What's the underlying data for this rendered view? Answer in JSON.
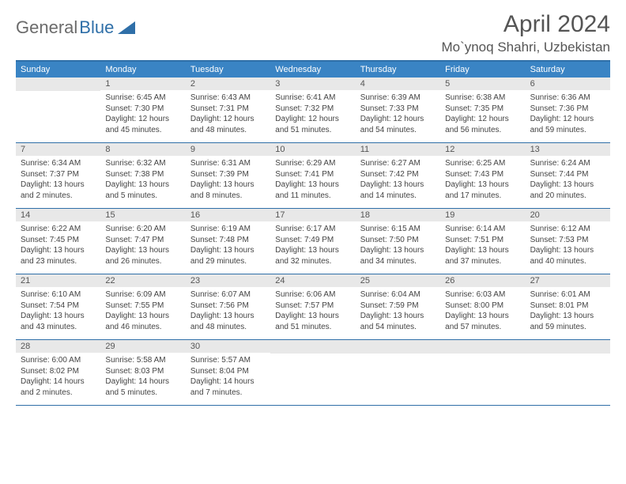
{
  "logo": {
    "gray": "General",
    "blue": "Blue"
  },
  "title": "April 2024",
  "location": "Mo`ynoq Shahri, Uzbekistan",
  "weekdays": [
    "Sunday",
    "Monday",
    "Tuesday",
    "Wednesday",
    "Thursday",
    "Friday",
    "Saturday"
  ],
  "colors": {
    "header_bar": "#3a84c4",
    "accent_line": "#2f6fa8",
    "daynum_bg": "#e8e8e8",
    "logo_gray": "#6b6b6b",
    "logo_blue": "#2f6fa8",
    "text": "#444444"
  },
  "weeks": [
    [
      {
        "n": "",
        "sr": "",
        "ss": "",
        "d1": "",
        "d2": ""
      },
      {
        "n": "1",
        "sr": "Sunrise: 6:45 AM",
        "ss": "Sunset: 7:30 PM",
        "d1": "Daylight: 12 hours",
        "d2": "and 45 minutes."
      },
      {
        "n": "2",
        "sr": "Sunrise: 6:43 AM",
        "ss": "Sunset: 7:31 PM",
        "d1": "Daylight: 12 hours",
        "d2": "and 48 minutes."
      },
      {
        "n": "3",
        "sr": "Sunrise: 6:41 AM",
        "ss": "Sunset: 7:32 PM",
        "d1": "Daylight: 12 hours",
        "d2": "and 51 minutes."
      },
      {
        "n": "4",
        "sr": "Sunrise: 6:39 AM",
        "ss": "Sunset: 7:33 PM",
        "d1": "Daylight: 12 hours",
        "d2": "and 54 minutes."
      },
      {
        "n": "5",
        "sr": "Sunrise: 6:38 AM",
        "ss": "Sunset: 7:35 PM",
        "d1": "Daylight: 12 hours",
        "d2": "and 56 minutes."
      },
      {
        "n": "6",
        "sr": "Sunrise: 6:36 AM",
        "ss": "Sunset: 7:36 PM",
        "d1": "Daylight: 12 hours",
        "d2": "and 59 minutes."
      }
    ],
    [
      {
        "n": "7",
        "sr": "Sunrise: 6:34 AM",
        "ss": "Sunset: 7:37 PM",
        "d1": "Daylight: 13 hours",
        "d2": "and 2 minutes."
      },
      {
        "n": "8",
        "sr": "Sunrise: 6:32 AM",
        "ss": "Sunset: 7:38 PM",
        "d1": "Daylight: 13 hours",
        "d2": "and 5 minutes."
      },
      {
        "n": "9",
        "sr": "Sunrise: 6:31 AM",
        "ss": "Sunset: 7:39 PM",
        "d1": "Daylight: 13 hours",
        "d2": "and 8 minutes."
      },
      {
        "n": "10",
        "sr": "Sunrise: 6:29 AM",
        "ss": "Sunset: 7:41 PM",
        "d1": "Daylight: 13 hours",
        "d2": "and 11 minutes."
      },
      {
        "n": "11",
        "sr": "Sunrise: 6:27 AM",
        "ss": "Sunset: 7:42 PM",
        "d1": "Daylight: 13 hours",
        "d2": "and 14 minutes."
      },
      {
        "n": "12",
        "sr": "Sunrise: 6:25 AM",
        "ss": "Sunset: 7:43 PM",
        "d1": "Daylight: 13 hours",
        "d2": "and 17 minutes."
      },
      {
        "n": "13",
        "sr": "Sunrise: 6:24 AM",
        "ss": "Sunset: 7:44 PM",
        "d1": "Daylight: 13 hours",
        "d2": "and 20 minutes."
      }
    ],
    [
      {
        "n": "14",
        "sr": "Sunrise: 6:22 AM",
        "ss": "Sunset: 7:45 PM",
        "d1": "Daylight: 13 hours",
        "d2": "and 23 minutes."
      },
      {
        "n": "15",
        "sr": "Sunrise: 6:20 AM",
        "ss": "Sunset: 7:47 PM",
        "d1": "Daylight: 13 hours",
        "d2": "and 26 minutes."
      },
      {
        "n": "16",
        "sr": "Sunrise: 6:19 AM",
        "ss": "Sunset: 7:48 PM",
        "d1": "Daylight: 13 hours",
        "d2": "and 29 minutes."
      },
      {
        "n": "17",
        "sr": "Sunrise: 6:17 AM",
        "ss": "Sunset: 7:49 PM",
        "d1": "Daylight: 13 hours",
        "d2": "and 32 minutes."
      },
      {
        "n": "18",
        "sr": "Sunrise: 6:15 AM",
        "ss": "Sunset: 7:50 PM",
        "d1": "Daylight: 13 hours",
        "d2": "and 34 minutes."
      },
      {
        "n": "19",
        "sr": "Sunrise: 6:14 AM",
        "ss": "Sunset: 7:51 PM",
        "d1": "Daylight: 13 hours",
        "d2": "and 37 minutes."
      },
      {
        "n": "20",
        "sr": "Sunrise: 6:12 AM",
        "ss": "Sunset: 7:53 PM",
        "d1": "Daylight: 13 hours",
        "d2": "and 40 minutes."
      }
    ],
    [
      {
        "n": "21",
        "sr": "Sunrise: 6:10 AM",
        "ss": "Sunset: 7:54 PM",
        "d1": "Daylight: 13 hours",
        "d2": "and 43 minutes."
      },
      {
        "n": "22",
        "sr": "Sunrise: 6:09 AM",
        "ss": "Sunset: 7:55 PM",
        "d1": "Daylight: 13 hours",
        "d2": "and 46 minutes."
      },
      {
        "n": "23",
        "sr": "Sunrise: 6:07 AM",
        "ss": "Sunset: 7:56 PM",
        "d1": "Daylight: 13 hours",
        "d2": "and 48 minutes."
      },
      {
        "n": "24",
        "sr": "Sunrise: 6:06 AM",
        "ss": "Sunset: 7:57 PM",
        "d1": "Daylight: 13 hours",
        "d2": "and 51 minutes."
      },
      {
        "n": "25",
        "sr": "Sunrise: 6:04 AM",
        "ss": "Sunset: 7:59 PM",
        "d1": "Daylight: 13 hours",
        "d2": "and 54 minutes."
      },
      {
        "n": "26",
        "sr": "Sunrise: 6:03 AM",
        "ss": "Sunset: 8:00 PM",
        "d1": "Daylight: 13 hours",
        "d2": "and 57 minutes."
      },
      {
        "n": "27",
        "sr": "Sunrise: 6:01 AM",
        "ss": "Sunset: 8:01 PM",
        "d1": "Daylight: 13 hours",
        "d2": "and 59 minutes."
      }
    ],
    [
      {
        "n": "28",
        "sr": "Sunrise: 6:00 AM",
        "ss": "Sunset: 8:02 PM",
        "d1": "Daylight: 14 hours",
        "d2": "and 2 minutes."
      },
      {
        "n": "29",
        "sr": "Sunrise: 5:58 AM",
        "ss": "Sunset: 8:03 PM",
        "d1": "Daylight: 14 hours",
        "d2": "and 5 minutes."
      },
      {
        "n": "30",
        "sr": "Sunrise: 5:57 AM",
        "ss": "Sunset: 8:04 PM",
        "d1": "Daylight: 14 hours",
        "d2": "and 7 minutes."
      },
      {
        "n": "",
        "sr": "",
        "ss": "",
        "d1": "",
        "d2": ""
      },
      {
        "n": "",
        "sr": "",
        "ss": "",
        "d1": "",
        "d2": ""
      },
      {
        "n": "",
        "sr": "",
        "ss": "",
        "d1": "",
        "d2": ""
      },
      {
        "n": "",
        "sr": "",
        "ss": "",
        "d1": "",
        "d2": ""
      }
    ]
  ]
}
